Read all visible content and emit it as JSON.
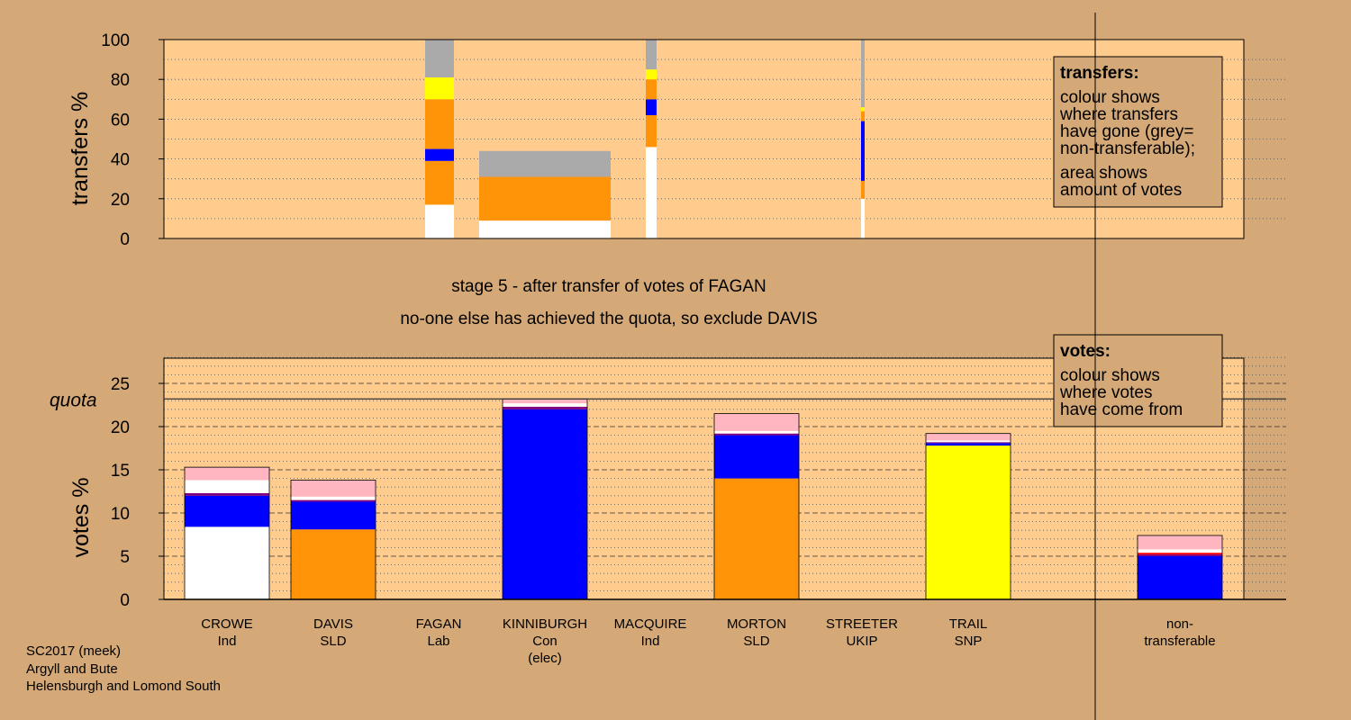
{
  "stage_text": "stage 5 - after transfer of votes of FAGAN",
  "decision_text": "no-one else has achieved the quota, so exclude DAVIS",
  "footer": [
    "SC2017 (meek)",
    "Argyll and Bute",
    "Helensburgh and Lomond South"
  ],
  "legend_transfers": {
    "title": "transfers:",
    "lines1": [
      "colour shows",
      "where transfers",
      "have gone (grey=",
      "non-transferable);"
    ],
    "lines2": [
      "area shows",
      "amount of votes"
    ]
  },
  "legend_votes": {
    "title": "votes:",
    "lines": [
      "colour shows",
      "where votes",
      "have come from"
    ]
  },
  "colors": {
    "background": "#D4A977",
    "plot": "#FFCC8E",
    "white": "#FFFFFF",
    "orange": "#FF9408",
    "blue": "#0000FF",
    "yellow": "#FFFF00",
    "grey": "#AAAAAA",
    "pink": "#FFB6C1",
    "purple": "#800080",
    "red": "#FF0000"
  },
  "chart_data": [
    {
      "type": "bar",
      "subtype": "stacked-variable-width",
      "ylabel": "transfers %",
      "ylim": [
        0,
        100
      ],
      "yticks": [
        0,
        20,
        40,
        60,
        80,
        100
      ],
      "grid": "dotted",
      "columns": [
        {
          "name": "CROWE",
          "segments": [
            {
              "color": "white",
              "from": 0,
              "to": 17
            },
            {
              "color": "orange",
              "from": 17,
              "to": 39
            },
            {
              "color": "blue",
              "from": 39,
              "to": 45
            },
            {
              "color": "orange",
              "from": 45,
              "to": 70
            },
            {
              "color": "yellow",
              "from": 70,
              "to": 81
            },
            {
              "color": "grey",
              "from": 81,
              "to": 100
            }
          ]
        },
        {
          "name": "FAGAN",
          "segments": [
            {
              "color": "white",
              "from": 0,
              "to": 9
            },
            {
              "color": "orange",
              "from": 9,
              "to": 31
            },
            {
              "color": "grey",
              "from": 31,
              "to": 44
            }
          ]
        },
        {
          "name": "MACQUIRE",
          "segments": [
            {
              "color": "white",
              "from": 0,
              "to": 46
            },
            {
              "color": "orange",
              "from": 46,
              "to": 62
            },
            {
              "color": "blue",
              "from": 62,
              "to": 70
            },
            {
              "color": "orange",
              "from": 70,
              "to": 80
            },
            {
              "color": "yellow",
              "from": 80,
              "to": 85
            },
            {
              "color": "grey",
              "from": 85,
              "to": 100
            }
          ]
        },
        {
          "name": "STREETER",
          "segments": [
            {
              "color": "white",
              "from": 0,
              "to": 20
            },
            {
              "color": "orange",
              "from": 20,
              "to": 29
            },
            {
              "color": "blue",
              "from": 29,
              "to": 59
            },
            {
              "color": "orange",
              "from": 59,
              "to": 64
            },
            {
              "color": "yellow",
              "from": 64,
              "to": 66
            },
            {
              "color": "grey",
              "from": 66,
              "to": 100
            }
          ]
        }
      ]
    },
    {
      "type": "bar",
      "subtype": "stacked",
      "ylabel": "votes %",
      "ylim": [
        0,
        28
      ],
      "yticks": [
        0,
        5,
        10,
        15,
        20,
        25
      ],
      "quota": 23.2,
      "quota_label": "quota",
      "categories": [
        {
          "name": "CROWE",
          "party": "Ind",
          "note": "",
          "segments": [
            {
              "color": "white",
              "value": 8.4
            },
            {
              "color": "blue",
              "value": 3.6
            },
            {
              "color": "purple",
              "value": 0.3
            },
            {
              "color": "white",
              "value": 1.5
            },
            {
              "color": "pink",
              "value": 1.5
            }
          ]
        },
        {
          "name": "DAVIS",
          "party": "SLD",
          "note": "",
          "segments": [
            {
              "color": "orange",
              "value": 8.1
            },
            {
              "color": "blue",
              "value": 3.2
            },
            {
              "color": "purple",
              "value": 0.2
            },
            {
              "color": "white",
              "value": 0.4
            },
            {
              "color": "pink",
              "value": 1.9
            }
          ]
        },
        {
          "name": "FAGAN",
          "party": "Lab",
          "note": "",
          "segments": []
        },
        {
          "name": "KINNIBURGH",
          "party": "Con",
          "note": "(elec)",
          "segments": [
            {
              "color": "blue",
              "value": 22.0
            },
            {
              "color": "purple",
              "value": 0.3
            },
            {
              "color": "white",
              "value": 0.4
            },
            {
              "color": "pink",
              "value": 0.5
            }
          ]
        },
        {
          "name": "MACQUIRE",
          "party": "Ind",
          "note": "",
          "segments": []
        },
        {
          "name": "MORTON",
          "party": "SLD",
          "note": "",
          "segments": [
            {
              "color": "orange",
              "value": 14.0
            },
            {
              "color": "blue",
              "value": 5.0
            },
            {
              "color": "purple",
              "value": 0.2
            },
            {
              "color": "white",
              "value": 0.3
            },
            {
              "color": "pink",
              "value": 2.0
            }
          ]
        },
        {
          "name": "STREETER",
          "party": "UKIP",
          "note": "",
          "segments": []
        },
        {
          "name": "TRAIL",
          "party": "SNP",
          "note": "",
          "segments": [
            {
              "color": "yellow",
              "value": 17.8
            },
            {
              "color": "blue",
              "value": 0.3
            },
            {
              "color": "purple",
              "value": 0.1
            },
            {
              "color": "white",
              "value": 0.2
            },
            {
              "color": "pink",
              "value": 0.8
            }
          ]
        },
        {
          "name": "non-",
          "party": "transferable",
          "note": "",
          "segments": [
            {
              "color": "blue",
              "value": 5.0
            },
            {
              "color": "purple",
              "value": 0.2
            },
            {
              "color": "red",
              "value": 0.2
            },
            {
              "color": "white",
              "value": 0.4
            },
            {
              "color": "pink",
              "value": 1.6
            }
          ]
        }
      ]
    }
  ]
}
